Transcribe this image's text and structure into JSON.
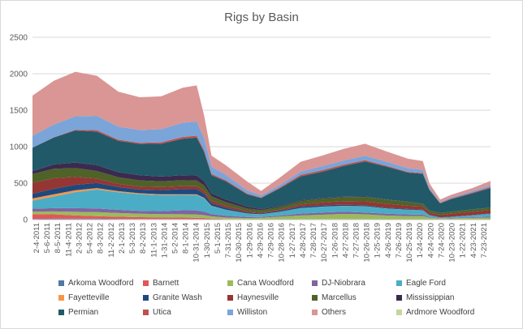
{
  "chart_data": {
    "type": "area",
    "title": "Rigs by Basin",
    "xlabel": "",
    "ylabel": "",
    "ylim": [
      0,
      2500
    ],
    "yticks": [
      "0",
      "500",
      "1000",
      "1500",
      "2000",
      "2500"
    ],
    "xtick_labels": [
      "2-4-2011",
      "5-6-2011",
      "8-5-2011",
      "11-4-2011",
      "2-3-2012",
      "5-4-2012",
      "8-3-2012",
      "11-2-2012",
      "2-1-2013",
      "5-3-2013",
      "8-2-2013",
      "11-1-2013",
      "1-31-2014",
      "5-2-2014",
      "8-1-2014",
      "10-31-2014",
      "1-30-2015",
      "5-1-2015",
      "7-31-2015",
      "10-30-2015",
      "1-29-2016",
      "4-29-2016",
      "7-29-2016",
      "10-28-2016",
      "1-27-2017",
      "4-28-2017",
      "7-28-2017",
      "10-27-2017",
      "1-26-2018",
      "4-27-2018",
      "7-27-2018",
      "10-26-2018",
      "1-25-2019",
      "4-26-2019",
      "7-26-2019",
      "10-25-2019",
      "1-24-2020",
      "4-24-2020",
      "7-24-2020",
      "10-23-2020",
      "1-22-2021",
      "4-23-2021",
      "7-23-2021"
    ],
    "grid": true,
    "legend_position": "bottom",
    "x": [
      "2011-02-04",
      "2011-08-05",
      "2012-02-03",
      "2012-08-03",
      "2013-02-01",
      "2013-08-02",
      "2014-01-31",
      "2014-08-01",
      "2014-11-28",
      "2015-01-30",
      "2015-04-03",
      "2015-07-31",
      "2016-01-29",
      "2016-05-27",
      "2016-10-28",
      "2017-04-28",
      "2017-10-27",
      "2018-04-27",
      "2018-10-26",
      "2019-04-26",
      "2019-10-25",
      "2020-02-28",
      "2020-04-24",
      "2020-07-24",
      "2020-10-23",
      "2021-04-23",
      "2021-09-24"
    ],
    "series": [
      {
        "name": "Arkoma Woodford",
        "color": "#4e79a7",
        "values": [
          10,
          12,
          12,
          12,
          10,
          8,
          8,
          8,
          8,
          6,
          4,
          3,
          2,
          2,
          2,
          3,
          3,
          4,
          4,
          3,
          2,
          2,
          1,
          1,
          1,
          1,
          1
        ]
      },
      {
        "name": "Barnett",
        "color": "#e15759",
        "values": [
          65,
          60,
          45,
          35,
          30,
          25,
          22,
          20,
          18,
          15,
          10,
          6,
          4,
          3,
          3,
          4,
          4,
          4,
          3,
          3,
          2,
          2,
          1,
          1,
          1,
          2,
          2
        ]
      },
      {
        "name": "Cana Woodford",
        "color": "#9bbb59",
        "values": [
          35,
          40,
          50,
          55,
          50,
          48,
          45,
          45,
          44,
          40,
          30,
          20,
          15,
          20,
          35,
          50,
          60,
          70,
          65,
          50,
          45,
          45,
          25,
          12,
          15,
          20,
          25
        ]
      },
      {
        "name": "DJ-Niobrara",
        "color": "#8064a2",
        "values": [
          40,
          45,
          50,
          50,
          45,
          38,
          40,
          55,
          57,
          48,
          30,
          25,
          15,
          12,
          15,
          25,
          30,
          30,
          25,
          25,
          22,
          18,
          8,
          4,
          5,
          10,
          12
        ]
      },
      {
        "name": "Eagle Ford",
        "color": "#4bacc6",
        "values": [
          110,
          160,
          220,
          260,
          240,
          230,
          220,
          210,
          208,
          180,
          110,
          80,
          45,
          35,
          50,
          75,
          80,
          80,
          85,
          70,
          65,
          60,
          25,
          10,
          15,
          25,
          40
        ]
      },
      {
        "name": "Fayetteville",
        "color": "#f79646",
        "values": [
          30,
          30,
          25,
          20,
          15,
          12,
          12,
          10,
          10,
          8,
          5,
          3,
          2,
          1,
          1,
          1,
          1,
          1,
          1,
          1,
          1,
          1,
          0,
          0,
          0,
          0,
          0
        ]
      },
      {
        "name": "Granite Wash",
        "color": "#1f497d",
        "values": [
          65,
          75,
          75,
          70,
          55,
          50,
          58,
          70,
          72,
          60,
          35,
          25,
          15,
          12,
          15,
          20,
          18,
          15,
          12,
          10,
          8,
          7,
          4,
          3,
          3,
          4,
          5
        ]
      },
      {
        "name": "Haynesville",
        "color": "#943634",
        "values": [
          150,
          145,
          110,
          60,
          45,
          42,
          40,
          42,
          42,
          40,
          35,
          30,
          20,
          15,
          15,
          30,
          40,
          48,
          55,
          55,
          45,
          45,
          30,
          35,
          40,
          45,
          45
        ]
      },
      {
        "name": "Marcellus",
        "color": "#4f6228",
        "values": [
          120,
          130,
          120,
          105,
          90,
          85,
          80,
          80,
          78,
          70,
          60,
          50,
          35,
          30,
          35,
          45,
          50,
          55,
          60,
          55,
          50,
          35,
          30,
          25,
          28,
          32,
          32
        ]
      },
      {
        "name": "Mississippian",
        "color": "#3b2a4f",
        "values": [
          40,
          60,
          75,
          80,
          70,
          70,
          65,
          68,
          68,
          60,
          40,
          35,
          25,
          15,
          12,
          10,
          10,
          8,
          7,
          5,
          4,
          3,
          1,
          1,
          1,
          1,
          1
        ]
      },
      {
        "name": "Permian",
        "color": "#215968",
        "values": [
          320,
          370,
          440,
          460,
          430,
          430,
          450,
          500,
          520,
          400,
          250,
          250,
          170,
          150,
          240,
          330,
          360,
          420,
          480,
          450,
          400,
          410,
          280,
          130,
          170,
          220,
          270
        ]
      },
      {
        "name": "Utica",
        "color": "#c0504d",
        "values": [
          0,
          2,
          10,
          20,
          15,
          15,
          20,
          25,
          25,
          22,
          18,
          15,
          10,
          8,
          12,
          20,
          22,
          20,
          18,
          12,
          10,
          10,
          8,
          8,
          10,
          12,
          12
        ]
      },
      {
        "name": "Williston",
        "color": "#7ba4d9",
        "values": [
          165,
          175,
          185,
          195,
          180,
          175,
          180,
          195,
          195,
          165,
          100,
          75,
          45,
          30,
          35,
          45,
          55,
          55,
          60,
          55,
          50,
          45,
          25,
          10,
          15,
          20,
          25
        ]
      },
      {
        "name": "Others",
        "color": "#d99694",
        "values": [
          550,
          600,
          610,
          550,
          480,
          450,
          450,
          480,
          495,
          310,
          150,
          130,
          120,
          60,
          100,
          135,
          145,
          160,
          165,
          140,
          130,
          120,
          60,
          35,
          35,
          40,
          60
        ]
      },
      {
        "name": "Ardmore Woodford",
        "color": "#c3d69b",
        "values": [
          0,
          0,
          0,
          0,
          0,
          0,
          0,
          0,
          0,
          0,
          0,
          0,
          0,
          0,
          0,
          0,
          0,
          0,
          0,
          0,
          0,
          0,
          0,
          0,
          0,
          0,
          0
        ]
      }
    ]
  }
}
